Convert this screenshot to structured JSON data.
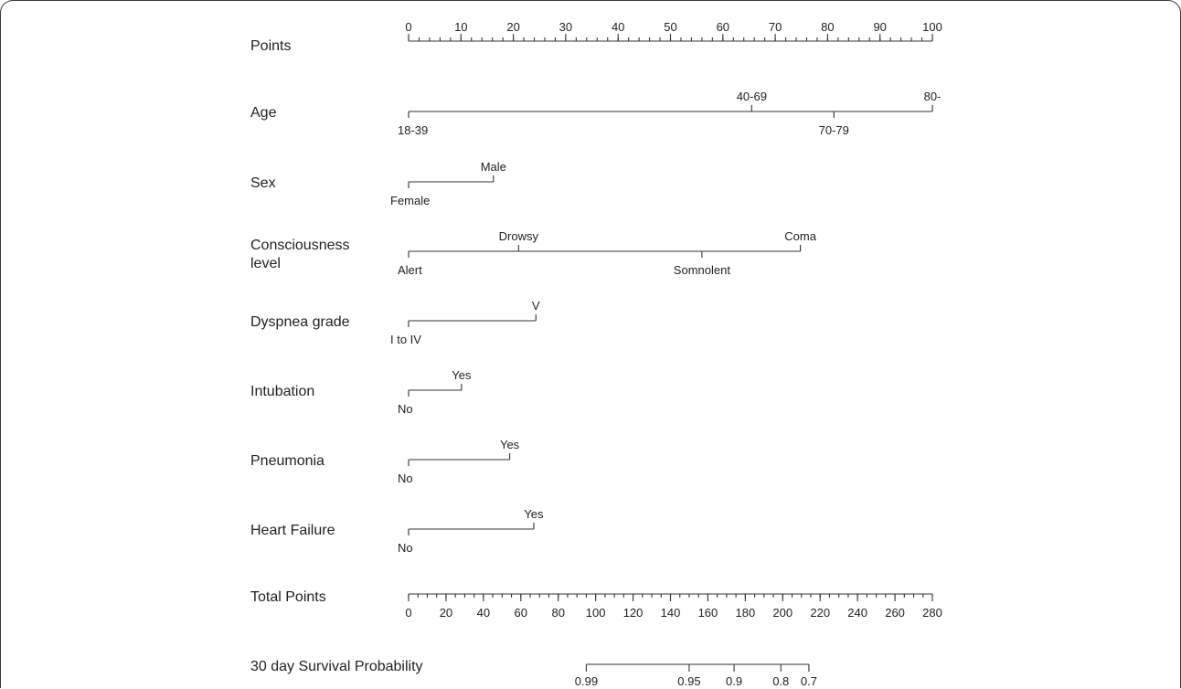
{
  "chart_data": {
    "type": "nomogram",
    "points_axis": {
      "label": "Points",
      "min": 0,
      "max": 100,
      "major_ticks": [
        0,
        10,
        20,
        30,
        40,
        50,
        60,
        70,
        80,
        90,
        100
      ],
      "minor_step": 2
    },
    "predictors": [
      {
        "name": "Age",
        "levels": [
          {
            "label": "18-39",
            "points": 0,
            "position": "below"
          },
          {
            "label": "40-69",
            "points": 65.5,
            "position": "above"
          },
          {
            "label": "70-79",
            "points": 81.2,
            "position": "below"
          },
          {
            "label": "80-",
            "points": 100,
            "position": "above"
          }
        ]
      },
      {
        "name": "Sex",
        "levels": [
          {
            "label": "Female",
            "points": 0,
            "position": "below"
          },
          {
            "label": "Male",
            "points": 16.2,
            "position": "above"
          }
        ]
      },
      {
        "name": "Consciousness level",
        "name_lines": [
          "Consciousness",
          "level"
        ],
        "levels": [
          {
            "label": "Alert",
            "points": 0,
            "position": "below"
          },
          {
            "label": "Drowsy",
            "points": 21,
            "position": "above"
          },
          {
            "label": "Somnolent",
            "points": 56,
            "position": "below"
          },
          {
            "label": "Coma",
            "points": 74.8,
            "position": "above"
          }
        ]
      },
      {
        "name": "Dyspnea grade",
        "levels": [
          {
            "label": "I to IV",
            "points": 0,
            "position": "below"
          },
          {
            "label": "V",
            "points": 24.3,
            "position": "above"
          }
        ]
      },
      {
        "name": "Intubation",
        "levels": [
          {
            "label": "No",
            "points": 0,
            "position": "below"
          },
          {
            "label": "Yes",
            "points": 10.1,
            "position": "above"
          }
        ]
      },
      {
        "name": "Pneumonia",
        "levels": [
          {
            "label": "No",
            "points": 0,
            "position": "below"
          },
          {
            "label": "Yes",
            "points": 19.3,
            "position": "above"
          }
        ]
      },
      {
        "name": "Heart Failure",
        "levels": [
          {
            "label": "No",
            "points": 0,
            "position": "below"
          },
          {
            "label": "Yes",
            "points": 23.9,
            "position": "above"
          }
        ]
      }
    ],
    "total_points_axis": {
      "label": "Total Points",
      "min": 0,
      "max": 280,
      "major_ticks": [
        0,
        20,
        40,
        60,
        80,
        100,
        120,
        140,
        160,
        180,
        200,
        220,
        240,
        260,
        280
      ],
      "minor_step": 5
    },
    "survival_axis": {
      "label": "30 day Survival Probability",
      "ticks": [
        {
          "label": "0.99",
          "total_points": 95
        },
        {
          "label": "0.95",
          "total_points": 150
        },
        {
          "label": "0.9",
          "total_points": 174
        },
        {
          "label": "0.8",
          "total_points": 199
        },
        {
          "label": "0.7",
          "total_points": 214
        }
      ]
    }
  }
}
